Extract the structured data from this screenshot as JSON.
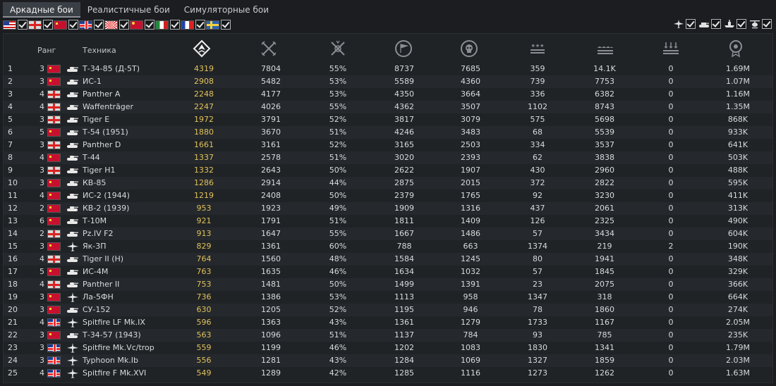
{
  "tabs": [
    {
      "label": "Аркадные бои",
      "active": true
    },
    {
      "label": "Реалистичные бои",
      "active": false
    },
    {
      "label": "Симуляторные бои",
      "active": false
    }
  ],
  "nation_filters": [
    "usa",
    "germany",
    "ussr",
    "britain",
    "japan",
    "china",
    "italy",
    "france",
    "sweden"
  ],
  "type_filters": [
    "aircraft-icon",
    "tank-icon",
    "ship-icon",
    "helicopter-icon"
  ],
  "header": {
    "rank": "Ранг",
    "vehicle": "Техника",
    "icons": [
      "battles-icon",
      "victories-icon",
      "win-ratio-icon",
      "respawns-icon",
      "deaths-icon",
      "air-kills-icon",
      "ground-kills-icon",
      "naval-kills-icon",
      "silver-lions-icon"
    ]
  },
  "rows": [
    {
      "n": "1",
      "rank": "3",
      "nation": "ussr",
      "type": "tank",
      "name": "Т-34-85 (Д-5Т)",
      "score": "4319",
      "c1": "7804",
      "c2": "55%",
      "c3": "8737",
      "c4": "7685",
      "c5": "359",
      "c6": "14.1K",
      "c7": "0",
      "c8": "1.69M"
    },
    {
      "n": "2",
      "rank": "3",
      "nation": "ussr",
      "type": "tank",
      "name": "ИС-1",
      "score": "2908",
      "c1": "5482",
      "c2": "53%",
      "c3": "5589",
      "c4": "4360",
      "c5": "739",
      "c6": "7753",
      "c7": "0",
      "c8": "1.07M"
    },
    {
      "n": "3",
      "rank": "4",
      "nation": "ger",
      "type": "tank",
      "name": "Panther A",
      "score": "2248",
      "c1": "4177",
      "c2": "53%",
      "c3": "4350",
      "c4": "3664",
      "c5": "336",
      "c6": "6382",
      "c7": "0",
      "c8": "1.16M"
    },
    {
      "n": "4",
      "rank": "4",
      "nation": "ger",
      "type": "tank",
      "name": "Waffenträger",
      "score": "2247",
      "c1": "4026",
      "c2": "55%",
      "c3": "4362",
      "c4": "3507",
      "c5": "1102",
      "c6": "8743",
      "c7": "0",
      "c8": "1.35M"
    },
    {
      "n": "5",
      "rank": "3",
      "nation": "ger",
      "type": "tank",
      "name": "Tiger E",
      "score": "1972",
      "c1": "3791",
      "c2": "52%",
      "c3": "3817",
      "c4": "3079",
      "c5": "575",
      "c6": "5698",
      "c7": "0",
      "c8": "868K"
    },
    {
      "n": "6",
      "rank": "5",
      "nation": "ussr",
      "type": "tank",
      "name": "Т-54 (1951)",
      "score": "1880",
      "c1": "3670",
      "c2": "51%",
      "c3": "4246",
      "c4": "3483",
      "c5": "68",
      "c6": "5539",
      "c7": "0",
      "c8": "933K"
    },
    {
      "n": "7",
      "rank": "3",
      "nation": "ger",
      "type": "tank",
      "name": "Panther D",
      "score": "1661",
      "c1": "3161",
      "c2": "52%",
      "c3": "3165",
      "c4": "2503",
      "c5": "334",
      "c6": "3537",
      "c7": "0",
      "c8": "641K"
    },
    {
      "n": "8",
      "rank": "4",
      "nation": "ussr",
      "type": "tank",
      "name": "Т-44",
      "score": "1337",
      "c1": "2578",
      "c2": "51%",
      "c3": "3020",
      "c4": "2393",
      "c5": "62",
      "c6": "3838",
      "c7": "0",
      "c8": "503K"
    },
    {
      "n": "9",
      "rank": "3",
      "nation": "ger",
      "type": "tank",
      "name": "Tiger H1",
      "score": "1332",
      "c1": "2643",
      "c2": "50%",
      "c3": "2622",
      "c4": "1907",
      "c5": "430",
      "c6": "2960",
      "c7": "0",
      "c8": "488K"
    },
    {
      "n": "10",
      "rank": "3",
      "nation": "ussr",
      "type": "tank",
      "name": "КВ-85",
      "score": "1286",
      "c1": "2914",
      "c2": "44%",
      "c3": "2875",
      "c4": "2015",
      "c5": "372",
      "c6": "2822",
      "c7": "0",
      "c8": "595K"
    },
    {
      "n": "11",
      "rank": "4",
      "nation": "ussr",
      "type": "tank",
      "name": "ИС-2 (1944)",
      "score": "1219",
      "c1": "2408",
      "c2": "50%",
      "c3": "2379",
      "c4": "1765",
      "c5": "92",
      "c6": "3230",
      "c7": "0",
      "c8": "411K"
    },
    {
      "n": "12",
      "rank": "2",
      "nation": "ussr",
      "type": "tank",
      "name": "КВ-2 (1939)",
      "score": "953",
      "c1": "1923",
      "c2": "49%",
      "c3": "1909",
      "c4": "1316",
      "c5": "437",
      "c6": "2061",
      "c7": "0",
      "c8": "313K"
    },
    {
      "n": "13",
      "rank": "6",
      "nation": "ussr",
      "type": "tank",
      "name": "Т-10М",
      "score": "921",
      "c1": "1791",
      "c2": "51%",
      "c3": "1811",
      "c4": "1409",
      "c5": "126",
      "c6": "2325",
      "c7": "0",
      "c8": "490K"
    },
    {
      "n": "14",
      "rank": "2",
      "nation": "ger",
      "type": "tank",
      "name": "Pz.IV F2",
      "score": "913",
      "c1": "1647",
      "c2": "55%",
      "c3": "1667",
      "c4": "1486",
      "c5": "57",
      "c6": "3434",
      "c7": "0",
      "c8": "604K"
    },
    {
      "n": "15",
      "rank": "3",
      "nation": "ussr",
      "type": "plane",
      "name": "Як-3П",
      "score": "829",
      "c1": "1361",
      "c2": "60%",
      "c3": "788",
      "c4": "663",
      "c5": "1374",
      "c6": "219",
      "c7": "2",
      "c8": "190K"
    },
    {
      "n": "16",
      "rank": "4",
      "nation": "ger",
      "type": "tank",
      "name": "Tiger II (H)",
      "score": "764",
      "c1": "1560",
      "c2": "48%",
      "c3": "1584",
      "c4": "1245",
      "c5": "80",
      "c6": "1941",
      "c7": "0",
      "c8": "348K"
    },
    {
      "n": "17",
      "rank": "5",
      "nation": "ussr",
      "type": "tank",
      "name": "ИС-4М",
      "score": "763",
      "c1": "1635",
      "c2": "46%",
      "c3": "1634",
      "c4": "1032",
      "c5": "57",
      "c6": "1845",
      "c7": "0",
      "c8": "329K"
    },
    {
      "n": "18",
      "rank": "4",
      "nation": "ger",
      "type": "tank",
      "name": "Panther II",
      "score": "753",
      "c1": "1481",
      "c2": "50%",
      "c3": "1499",
      "c4": "1391",
      "c5": "23",
      "c6": "2075",
      "c7": "0",
      "c8": "366K"
    },
    {
      "n": "19",
      "rank": "3",
      "nation": "ussr",
      "type": "plane",
      "name": "Ла-5ФН",
      "score": "736",
      "c1": "1386",
      "c2": "53%",
      "c3": "1113",
      "c4": "958",
      "c5": "1347",
      "c6": "318",
      "c7": "0",
      "c8": "664K"
    },
    {
      "n": "20",
      "rank": "3",
      "nation": "ussr",
      "type": "tank",
      "name": "СУ-152",
      "score": "630",
      "c1": "1205",
      "c2": "52%",
      "c3": "1195",
      "c4": "946",
      "c5": "78",
      "c6": "1860",
      "c7": "0",
      "c8": "274K"
    },
    {
      "n": "21",
      "rank": "4",
      "nation": "gb",
      "type": "plane",
      "name": "Spitfire LF Mk.IX",
      "score": "596",
      "c1": "1363",
      "c2": "43%",
      "c3": "1361",
      "c4": "1279",
      "c5": "1733",
      "c6": "1167",
      "c7": "0",
      "c8": "2.05M"
    },
    {
      "n": "22",
      "rank": "3",
      "nation": "ussr",
      "type": "tank",
      "name": "Т-34-57 (1943)",
      "score": "563",
      "c1": "1096",
      "c2": "51%",
      "c3": "1137",
      "c4": "784",
      "c5": "93",
      "c6": "785",
      "c7": "0",
      "c8": "235K"
    },
    {
      "n": "23",
      "rank": "3",
      "nation": "gb",
      "type": "plane",
      "name": "Spitfire Mk.Vc/trop",
      "score": "559",
      "c1": "1199",
      "c2": "46%",
      "c3": "1202",
      "c4": "1083",
      "c5": "1830",
      "c6": "1341",
      "c7": "0",
      "c8": "1.79M"
    },
    {
      "n": "24",
      "rank": "3",
      "nation": "gb",
      "type": "plane",
      "name": "Typhoon Mk.Ib",
      "score": "556",
      "c1": "1281",
      "c2": "43%",
      "c3": "1284",
      "c4": "1069",
      "c5": "1327",
      "c6": "1859",
      "c7": "0",
      "c8": "2.03M"
    },
    {
      "n": "25",
      "rank": "4",
      "nation": "gb",
      "type": "plane",
      "name": "Spitfire F Mk.XVI",
      "score": "549",
      "c1": "1289",
      "c2": "42%",
      "c3": "1285",
      "c4": "1116",
      "c5": "1273",
      "c6": "1262",
      "c7": "0",
      "c8": "1.63M"
    }
  ]
}
